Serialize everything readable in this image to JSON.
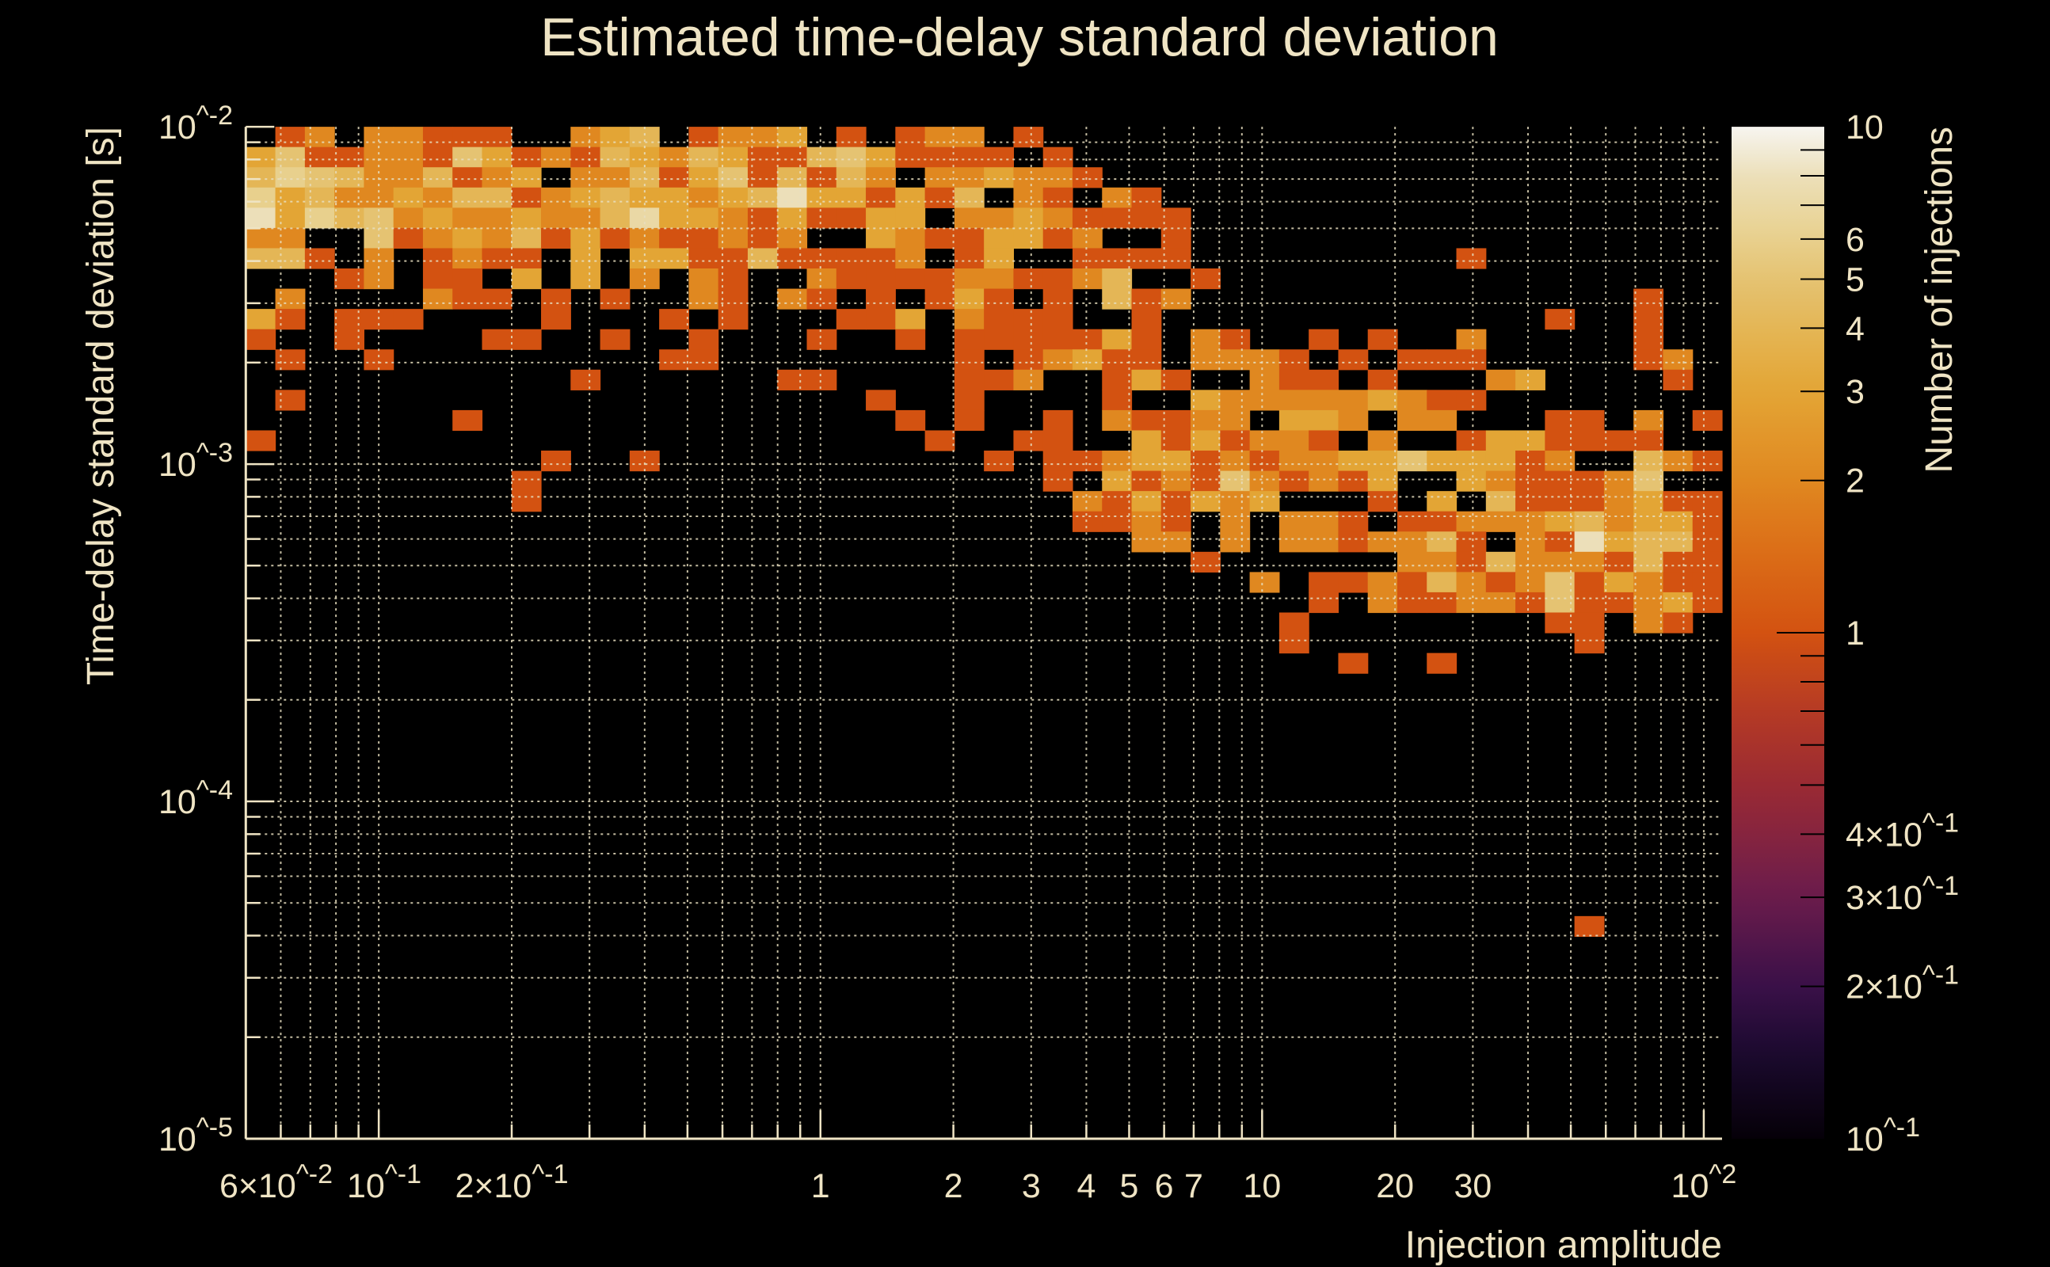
{
  "chart_data": {
    "type": "heatmap",
    "title": "Estimated time-delay standard deviation",
    "xlabel": "Injection amplitude",
    "ylabel": "Time-delay standard deviation [s]",
    "zlabel": "Number of injections",
    "x_scale": "log",
    "y_scale": "log",
    "z_scale": "log",
    "xlim": [
      0.05,
      110
    ],
    "ylim": [
      1e-05,
      0.01
    ],
    "zlim": [
      0.1,
      10
    ],
    "grid": true,
    "n_x_bins": 50,
    "n_y_bins": 50,
    "counts_rows_top_to_bottom": [
      "0120221110023|4012230101220|1000000000000|00000000000",
      "3511221531214|3243114531111|0100000000000|00000000000",
      "4654224123022|4135141420223|2210000000000|00000000000",
      "6342232441234|3323483313140|2102100000000|00000000000",
      "8364523223224|7332131133022|3211110000000|00000000000",
      "2200512324131|2112120032113|3120010000000|00000000000",
      "4410201211030|3311411112013|0011110000000|00100000000",
      "0001201103030|2021002111122|1124001000000|00000000000",
      "0200002110101|0021021010131|0104120000000|00000000100",
      "3101110000100|0101000113021|1100100000000|00000100100",
      "1001000011001|0010001001011|1113102100101|00200000100",
      "0100100000000|0110000000010|1231102221010|11100000120",
      "0000000000010|0000011000011|2001310021101|00023000010",
      "0100000000000|0000000010010|0001003222223|21100000000",
      "0000000100000|0000000001010|0102112203320|22000110201",
      "1000000000000|0000000000100|1100313122102|00133111100",
      "0000000000100|1000000000001|0112331212233|53331200421",
      "0000000001000|0000000000000|0103121521213|00321112500",
      "0000000001000|0000000000000|0021313230001|03041112311",
      "0000000000000|0000000000000|0011210202210|11222342331",
      "0000000000000|0000000000000|0000220202212|24102183441",
      "0000000000000|0000000000000|0000001000000|22142221411",
      "0000000000000|0000000000000|0000000020112|14212513211",
      "0000000000000|0000000000000|0000000000102|11221511231",
      "0000000000000|0000000000000|0000000001000|00000110210",
      "0000000000000|0000000000000|0000000001000|00000010000",
      "0000000000000|0000000000000|0000000000010|01000000000",
      "",
      "",
      "",
      "",
      "",
      "",
      "",
      "",
      "",
      "",
      "",
      "",
      "0000000000000|0000000000000|0000000000000|00000010000",
      "",
      "",
      "",
      "",
      "",
      "",
      "",
      "",
      "",
      ""
    ],
    "x_ticks": [
      {
        "value": 0.06,
        "label": "6×10^-2"
      },
      {
        "value": 0.1,
        "label": "10^-1"
      },
      {
        "value": 0.2,
        "label": "2×10^-1"
      },
      {
        "value": 1,
        "label": "1"
      },
      {
        "value": 2,
        "label": "2"
      },
      {
        "value": 3,
        "label": "3"
      },
      {
        "value": 4,
        "label": "4"
      },
      {
        "value": 5,
        "label": "5"
      },
      {
        "value": 6,
        "label": "6"
      },
      {
        "value": 7,
        "label": "7"
      },
      {
        "value": 10,
        "label": "10"
      },
      {
        "value": 20,
        "label": "20"
      },
      {
        "value": 30,
        "label": "30"
      },
      {
        "value": 100,
        "label": "10^2"
      }
    ],
    "y_ticks": [
      {
        "value": 0.01,
        "label": "10^-2"
      },
      {
        "value": 0.001,
        "label": "10^-3"
      },
      {
        "value": 0.0001,
        "label": "10^-4"
      },
      {
        "value": 1e-05,
        "label": "10^-5"
      }
    ],
    "z_ticks": [
      {
        "value": 10,
        "label": "10"
      },
      {
        "value": 6,
        "label": "6"
      },
      {
        "value": 5,
        "label": "5"
      },
      {
        "value": 4,
        "label": "4"
      },
      {
        "value": 3,
        "label": "3"
      },
      {
        "value": 2,
        "label": "2"
      },
      {
        "value": 1,
        "label": "1"
      },
      {
        "value": 0.4,
        "label": "4×10^-1"
      },
      {
        "value": 0.3,
        "label": "3×10^-1"
      },
      {
        "value": 0.2,
        "label": "2×10^-1"
      },
      {
        "value": 0.1,
        "label": "10^-1"
      }
    ],
    "colormap": [
      [
        0.1,
        "#050008"
      ],
      [
        0.15,
        "#1c0a30"
      ],
      [
        0.2,
        "#3a1048"
      ],
      [
        0.3,
        "#6a1c4c"
      ],
      [
        0.4,
        "#86243f"
      ],
      [
        0.5,
        "#9a2a33"
      ],
      [
        0.7,
        "#b53a25"
      ],
      [
        1,
        "#d35211"
      ],
      [
        1.5,
        "#dc7018"
      ],
      [
        2,
        "#e08820"
      ],
      [
        3,
        "#e3a535"
      ],
      [
        4,
        "#e4b656"
      ],
      [
        5,
        "#e5c372"
      ],
      [
        6,
        "#e8d08d"
      ],
      [
        8,
        "#ecdfb9"
      ],
      [
        10,
        "#f7f5f0"
      ]
    ]
  }
}
